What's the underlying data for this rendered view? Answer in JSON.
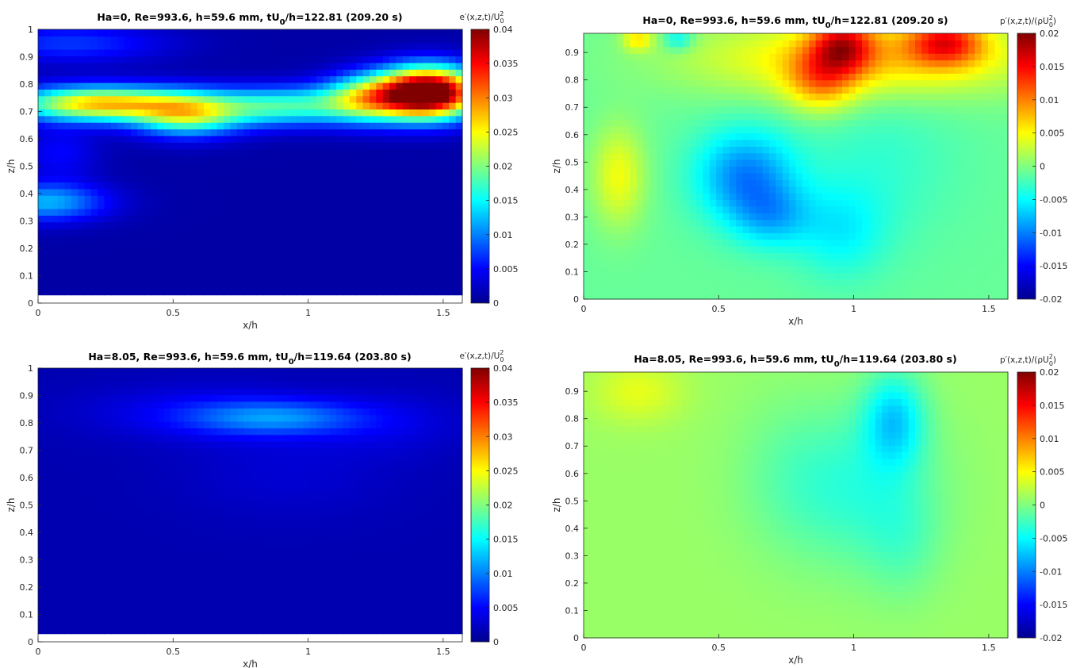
{
  "figure": {
    "colormap": "jet",
    "colormap_stops": [
      "#00008f",
      "#0000ff",
      "#0080ff",
      "#00ffff",
      "#80ff80",
      "#ffff00",
      "#ff8000",
      "#ff0000",
      "#800000"
    ]
  },
  "chart_data": [
    {
      "type": "heatmap",
      "title_main": "Ha=0, Re=993.6, h=59.6 mm, tU",
      "title_sub": "0",
      "title_tail": "/h=122.81 (209.20 s)",
      "xlabel": "x/h",
      "ylabel": "z/h",
      "colorbar_label": "e′(x,z,t)/U",
      "colorbar_label_sup": "2",
      "colorbar_label_sub": "0",
      "xlim": [
        0,
        1.5708
      ],
      "ylim": [
        0,
        1
      ],
      "data_ylim": [
        0.03,
        1
      ],
      "clim": [
        0,
        0.04
      ],
      "xticks": [
        0,
        0.5,
        1,
        1.5
      ],
      "xtick_labels": [
        "0",
        "0.5",
        "1",
        "1.5"
      ],
      "yticks": [
        0,
        0.1,
        0.2,
        0.3,
        0.4,
        0.5,
        0.6,
        0.7,
        0.8,
        0.9,
        1
      ],
      "ytick_labels": [
        "0",
        "0.1",
        "0.2",
        "0.3",
        "0.4",
        "0.5",
        "0.6",
        "0.7",
        "0.8",
        "0.9",
        "1"
      ],
      "cticks": [
        0,
        0.005,
        0.01,
        0.015,
        0.02,
        0.025,
        0.03,
        0.035,
        0.04
      ],
      "ctick_labels": [
        "0",
        "0.005",
        "0.01",
        "0.015",
        "0.02",
        "0.025",
        "0.03",
        "0.035",
        "0.04"
      ],
      "base": 0.001,
      "features": [
        {
          "x": 1.45,
          "z": 0.77,
          "sx": 0.13,
          "sz": 0.065,
          "a": 0.045
        },
        {
          "x": 1.22,
          "z": 0.75,
          "sx": 0.12,
          "sz": 0.06,
          "a": 0.018
        },
        {
          "x": 0.22,
          "z": 0.73,
          "sx": 0.22,
          "sz": 0.045,
          "a": 0.026
        },
        {
          "x": 0.55,
          "z": 0.69,
          "sx": 0.14,
          "sz": 0.055,
          "a": 0.018
        },
        {
          "x": 0.9,
          "z": 0.72,
          "sx": 0.2,
          "sz": 0.05,
          "a": 0.016
        },
        {
          "x": 0.03,
          "z": 0.37,
          "sx": 0.16,
          "sz": 0.05,
          "a": 0.011
        },
        {
          "x": 0.12,
          "z": 0.95,
          "sx": 0.25,
          "sz": 0.05,
          "a": 0.006
        },
        {
          "x": 0.08,
          "z": 0.55,
          "sx": 0.1,
          "sz": 0.07,
          "a": 0.004
        }
      ]
    },
    {
      "type": "heatmap",
      "title_main": "Ha=0, Re=993.6, h=59.6 mm, tU",
      "title_sub": "0",
      "title_tail": "/h=122.81 (209.20 s)",
      "xlabel": "x/h",
      "ylabel": "z/h",
      "colorbar_label": "p′(x,z,t)/(ρU",
      "colorbar_label_sup": "2",
      "colorbar_label_sub": "0",
      "colorbar_label_tail": ")",
      "xlim": [
        0,
        1.5708
      ],
      "ylim": [
        0,
        0.97
      ],
      "data_ylim": [
        0,
        0.97
      ],
      "clim": [
        -0.02,
        0.02
      ],
      "xticks": [
        0,
        0.5,
        1,
        1.5
      ],
      "xtick_labels": [
        "0",
        "0.5",
        "1",
        "1.5"
      ],
      "yticks": [
        0,
        0.1,
        0.2,
        0.3,
        0.4,
        0.5,
        0.6,
        0.7,
        0.8,
        0.9
      ],
      "ytick_labels": [
        "0",
        "0.1",
        "0.2",
        "0.3",
        "0.4",
        "0.5",
        "0.6",
        "0.7",
        "0.8",
        "0.9"
      ],
      "cticks": [
        -0.02,
        -0.015,
        -0.01,
        -0.005,
        0,
        0.005,
        0.01,
        0.015,
        0.02
      ],
      "ctick_labels": [
        "-0.02",
        "-0.015",
        "-0.01",
        "-0.005",
        "0",
        "0.005",
        "0.01",
        "0.015",
        "0.02"
      ],
      "base": -0.001,
      "features": [
        {
          "x": 0.96,
          "z": 0.93,
          "sx": 0.08,
          "sz": 0.07,
          "a": 0.012
        },
        {
          "x": 1.34,
          "z": 0.94,
          "sx": 0.1,
          "sz": 0.06,
          "a": 0.012
        },
        {
          "x": 0.88,
          "z": 0.8,
          "sx": 0.09,
          "sz": 0.08,
          "a": 0.008
        },
        {
          "x": 1.05,
          "z": 0.88,
          "sx": 0.45,
          "sz": 0.1,
          "a": 0.008
        },
        {
          "x": 0.2,
          "z": 0.95,
          "sx": 0.04,
          "sz": 0.03,
          "a": 0.006
        },
        {
          "x": 0.13,
          "z": 0.45,
          "sx": 0.07,
          "sz": 0.13,
          "a": 0.0055
        },
        {
          "x": 0.6,
          "z": 0.45,
          "sx": 0.13,
          "sz": 0.12,
          "a": -0.009
        },
        {
          "x": 0.7,
          "z": 0.3,
          "sx": 0.1,
          "sz": 0.08,
          "a": -0.005
        },
        {
          "x": 0.95,
          "z": 0.25,
          "sx": 0.12,
          "sz": 0.12,
          "a": -0.004
        },
        {
          "x": 0.35,
          "z": 0.95,
          "sx": 0.04,
          "sz": 0.03,
          "a": -0.005
        },
        {
          "x": 1.1,
          "z": 0.5,
          "sx": 0.2,
          "sz": 0.2,
          "a": -0.002
        }
      ]
    },
    {
      "type": "heatmap",
      "title_main": "Ha=8.05, Re=993.6, h=59.6 mm, tU",
      "title_sub": "0",
      "title_tail": "/h=119.64 (203.80 s)",
      "xlabel": "x/h",
      "ylabel": "z/h",
      "colorbar_label": "e′(x,z,t)/U",
      "colorbar_label_sup": "2",
      "colorbar_label_sub": "0",
      "xlim": [
        0,
        1.5708
      ],
      "ylim": [
        0,
        1
      ],
      "data_ylim": [
        0.03,
        1
      ],
      "clim": [
        0,
        0.04
      ],
      "xticks": [
        0,
        0.5,
        1,
        1.5
      ],
      "xtick_labels": [
        "0",
        "0.5",
        "1",
        "1.5"
      ],
      "yticks": [
        0,
        0.1,
        0.2,
        0.3,
        0.4,
        0.5,
        0.6,
        0.7,
        0.8,
        0.9,
        1
      ],
      "ytick_labels": [
        "0",
        "0.1",
        "0.2",
        "0.3",
        "0.4",
        "0.5",
        "0.6",
        "0.7",
        "0.8",
        "0.9",
        "1"
      ],
      "cticks": [
        0,
        0.005,
        0.01,
        0.015,
        0.02,
        0.025,
        0.03,
        0.035,
        0.04
      ],
      "ctick_labels": [
        "0",
        "0.005",
        "0.01",
        "0.015",
        "0.02",
        "0.025",
        "0.03",
        "0.035",
        "0.04"
      ],
      "base": 0.0015,
      "features": [
        {
          "x": 0.88,
          "z": 0.82,
          "sx": 0.22,
          "sz": 0.045,
          "a": 0.0075
        },
        {
          "x": 0.6,
          "z": 0.84,
          "sx": 0.3,
          "sz": 0.07,
          "a": 0.003
        },
        {
          "x": 0.92,
          "z": 0.62,
          "sx": 0.28,
          "sz": 0.12,
          "a": 0.0015
        },
        {
          "x": 1.3,
          "z": 0.8,
          "sx": 0.2,
          "sz": 0.08,
          "a": 0.002
        }
      ]
    },
    {
      "type": "heatmap",
      "title_main": "Ha=8.05, Re=993.6, h=59.6 mm, tU",
      "title_sub": "0",
      "title_tail": "/h=119.64 (203.80 s)",
      "xlabel": "x/h",
      "ylabel": "z/h",
      "colorbar_label": "p′(x,z,t)/(ρU",
      "colorbar_label_sup": "2",
      "colorbar_label_sub": "0",
      "colorbar_label_tail": ")",
      "xlim": [
        0,
        1.5708
      ],
      "ylim": [
        0,
        0.97
      ],
      "data_ylim": [
        0,
        0.97
      ],
      "clim": [
        -0.02,
        0.02
      ],
      "xticks": [
        0,
        0.5,
        1,
        1.5
      ],
      "xtick_labels": [
        "0",
        "0.5",
        "1",
        "1.5"
      ],
      "yticks": [
        0,
        0.1,
        0.2,
        0.3,
        0.4,
        0.5,
        0.6,
        0.7,
        0.8,
        0.9
      ],
      "ytick_labels": [
        "0",
        "0.1",
        "0.2",
        "0.3",
        "0.4",
        "0.5",
        "0.6",
        "0.7",
        "0.8",
        "0.9"
      ],
      "cticks": [
        -0.02,
        -0.015,
        -0.01,
        -0.005,
        0,
        0.005,
        0.01,
        0.015,
        0.02
      ],
      "ctick_labels": [
        "-0.02",
        "-0.015",
        "-0.01",
        "-0.005",
        "0",
        "0.005",
        "0.01",
        "0.015",
        "0.02"
      ],
      "base": 0.001,
      "features": [
        {
          "x": 1.15,
          "z": 0.8,
          "sx": 0.08,
          "sz": 0.12,
          "a": -0.007
        },
        {
          "x": 1.02,
          "z": 0.55,
          "sx": 0.2,
          "sz": 0.2,
          "a": -0.004
        },
        {
          "x": 1.18,
          "z": 0.35,
          "sx": 0.1,
          "sz": 0.15,
          "a": -0.002
        },
        {
          "x": 0.2,
          "z": 0.9,
          "sx": 0.12,
          "sz": 0.08,
          "a": 0.003
        },
        {
          "x": 0.75,
          "z": 0.6,
          "sx": 0.15,
          "sz": 0.2,
          "a": -0.0015
        }
      ]
    }
  ]
}
